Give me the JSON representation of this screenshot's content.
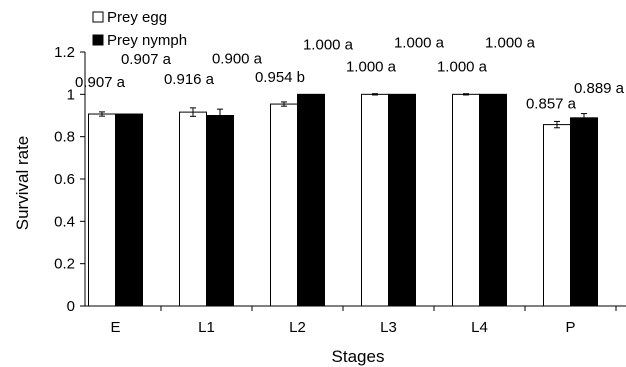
{
  "chart_data": {
    "type": "bar",
    "xlabel": "Stages",
    "ylabel": "Survival rate",
    "ylim": [
      0,
      1.2
    ],
    "yticks": [
      "0",
      "0.2",
      "0.4",
      "0.6",
      "0.8",
      "1",
      "1.2"
    ],
    "categories": [
      "E",
      "L1",
      "L2",
      "L3",
      "L4",
      "P"
    ],
    "series": [
      {
        "name": "Prey egg",
        "color": "#ffffff",
        "values": [
          0.907,
          0.916,
          0.954,
          1.0,
          1.0,
          0.857
        ],
        "errors": [
          0.01,
          0.02,
          0.01,
          0.003,
          0.003,
          0.015
        ],
        "labels": [
          "0.907 a",
          "0.916 a",
          "0.954 b",
          "1.000 a",
          "1.000 a",
          "0.857 a"
        ]
      },
      {
        "name": "Prey nymph",
        "color": "#000000",
        "values": [
          0.907,
          0.9,
          1.0,
          1.0,
          1.0,
          0.889
        ],
        "errors": [
          0.0,
          0.03,
          0.0,
          0.0,
          0.0,
          0.02
        ],
        "labels": [
          "0.907 a",
          "0.900 a",
          "1.000 a",
          "1.000 a",
          "1.000 a",
          "0.889 a"
        ]
      }
    ],
    "grid": false,
    "legend": "top-left"
  }
}
